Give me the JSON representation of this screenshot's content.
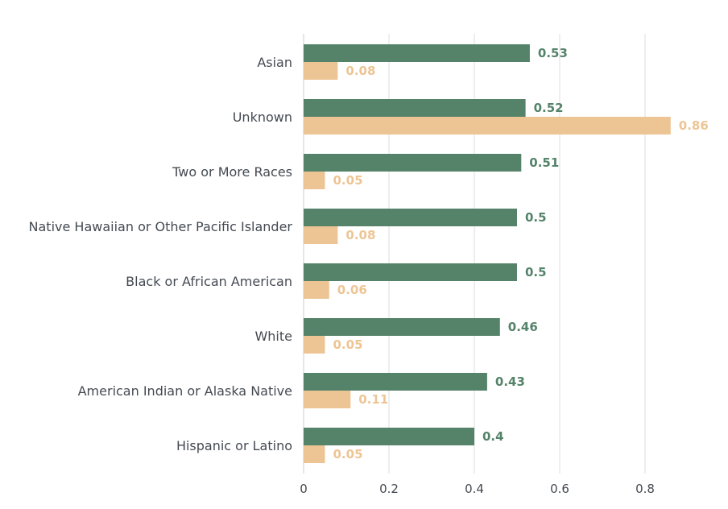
{
  "chart_data": {
    "type": "bar",
    "orientation": "horizontal",
    "categories": [
      "Asian",
      "Unknown",
      "Two or More Races",
      "Native Hawaiian or Other Pacific Islander",
      "Black or African American",
      "White",
      "American Indian or Alaska Native",
      "Hispanic or Latino"
    ],
    "series": [
      {
        "values": [
          0.53,
          0.52,
          0.51,
          0.5,
          0.5,
          0.46,
          0.43,
          0.4
        ],
        "color": "#55836a"
      },
      {
        "values": [
          0.08,
          0.86,
          0.05,
          0.08,
          0.06,
          0.05,
          0.11,
          0.05
        ],
        "color": "#edc595"
      }
    ],
    "value_labels": [
      [
        "0.53",
        "0.52",
        "0.51",
        "0.5",
        "0.5",
        "0.46",
        "0.43",
        "0.4"
      ],
      [
        "0.08",
        "0.86",
        "0.05",
        "0.08",
        "0.06",
        "0.05",
        "0.11",
        "0.05"
      ]
    ],
    "x_ticks": [
      0,
      0.2,
      0.4,
      0.6,
      0.8
    ],
    "x_tick_labels": [
      "0",
      "0.2",
      "0.4",
      "0.6",
      "0.8"
    ],
    "xlim": [
      0,
      0.9
    ],
    "grid": true,
    "legend": "none",
    "title": "",
    "xlabel": "",
    "ylabel": ""
  }
}
